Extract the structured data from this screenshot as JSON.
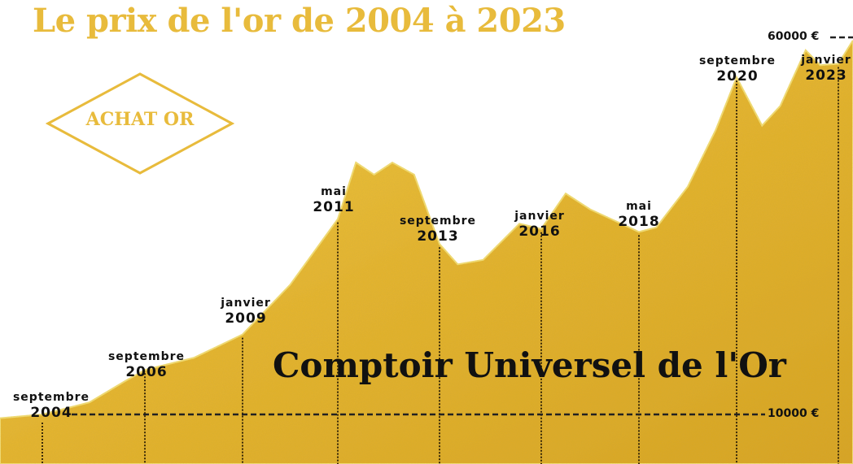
{
  "title": "Le prix de l'or de 2004 à 2023",
  "badge": "ACHAT OR",
  "watermark": "Comptoir Universel de l'Or",
  "colors": {
    "gold": "#e8bb3c",
    "fill_light": "#f1c947",
    "fill_dark": "#d9a521",
    "text": "#111111"
  },
  "chart_data": {
    "type": "area",
    "title": "Le prix de l'or de 2004 à 2023",
    "y_unit": "€",
    "y_reference_lines": [
      {
        "value": 10000,
        "label": "10000 €",
        "style": "dashed"
      },
      {
        "value": 60000,
        "label": "60000 €",
        "style": "dashed"
      }
    ],
    "grid": false,
    "points": [
      {
        "date": "2003-11",
        "value": 9500
      },
      {
        "date": "2004-09",
        "value": 10000
      },
      {
        "date": "2005-08",
        "value": 11600
      },
      {
        "date": "2006-04",
        "value": 14300
      },
      {
        "date": "2006-09",
        "value": 15900
      },
      {
        "date": "2007-11",
        "value": 17500
      },
      {
        "date": "2009-01",
        "value": 20600
      },
      {
        "date": "2010-03",
        "value": 27200
      },
      {
        "date": "2011-05",
        "value": 35900
      },
      {
        "date": "2011-10",
        "value": 43400
      },
      {
        "date": "2012-03",
        "value": 41800
      },
      {
        "date": "2012-08",
        "value": 43400
      },
      {
        "date": "2013-02",
        "value": 41800
      },
      {
        "date": "2013-09",
        "value": 32600
      },
      {
        "date": "2014-02",
        "value": 29900
      },
      {
        "date": "2014-09",
        "value": 30500
      },
      {
        "date": "2015-07",
        "value": 35300
      },
      {
        "date": "2016-01",
        "value": 34600
      },
      {
        "date": "2016-08",
        "value": 39300
      },
      {
        "date": "2017-03",
        "value": 37200
      },
      {
        "date": "2018-05",
        "value": 34200
      },
      {
        "date": "2018-10",
        "value": 34800
      },
      {
        "date": "2019-07",
        "value": 40200
      },
      {
        "date": "2020-03",
        "value": 47700
      },
      {
        "date": "2020-09",
        "value": 54700
      },
      {
        "date": "2021-04",
        "value": 48300
      },
      {
        "date": "2021-09",
        "value": 50900
      },
      {
        "date": "2022-04",
        "value": 58300
      },
      {
        "date": "2022-08",
        "value": 56300
      },
      {
        "date": "2023-01",
        "value": 56500
      },
      {
        "date": "2023-05",
        "value": 59600
      }
    ],
    "markers": [
      {
        "date": "2004-09",
        "month": "septembre",
        "year": "2004"
      },
      {
        "date": "2006-09",
        "month": "septembre",
        "year": "2006"
      },
      {
        "date": "2009-01",
        "month": "janvier",
        "year": "2009"
      },
      {
        "date": "2011-05",
        "month": "mai",
        "year": "2011"
      },
      {
        "date": "2013-09",
        "month": "septembre",
        "year": "2013"
      },
      {
        "date": "2016-01",
        "month": "janvier",
        "year": "2016"
      },
      {
        "date": "2018-05",
        "month": "mai",
        "year": "2018"
      },
      {
        "date": "2020-09",
        "month": "septembre",
        "year": "2020"
      },
      {
        "date": "2023-01",
        "month": "janvier",
        "year": "2023"
      }
    ]
  }
}
